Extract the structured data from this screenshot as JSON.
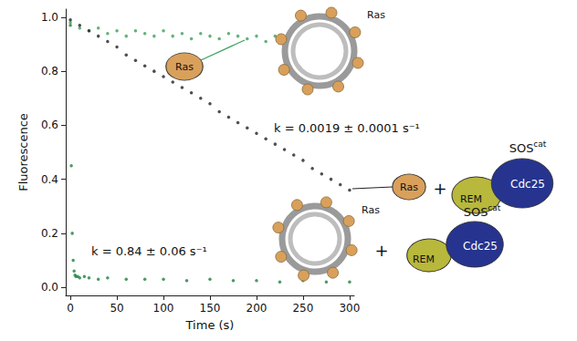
{
  "chart_data": {
    "type": "scatter",
    "xlabel": "Time (s)",
    "ylabel": "Fluorescence",
    "xlim": [
      -5,
      305
    ],
    "xticks": [
      0,
      50,
      100,
      150,
      200,
      250,
      300
    ],
    "ylim": [
      -0.03,
      1.03
    ],
    "yticks": [
      {
        "value": 0,
        "label": "0.0"
      },
      0.2,
      0.4,
      0.6,
      0.8,
      {
        "value": 1,
        "label": "1.0"
      }
    ],
    "grid": false,
    "series": [
      {
        "color": "#3aa05a",
        "marker": "circle",
        "x": [
          0,
          10,
          20,
          30,
          40,
          50,
          60,
          70,
          80,
          90,
          100,
          110,
          120,
          130,
          140,
          150,
          160,
          170,
          180,
          190,
          200,
          210,
          220,
          230,
          240,
          250,
          260,
          270,
          280,
          290,
          300
        ],
        "values": [
          0.98,
          0.96,
          0.95,
          0.96,
          0.94,
          0.95,
          0.93,
          0.95,
          0.94,
          0.93,
          0.95,
          0.93,
          0.94,
          0.92,
          0.94,
          0.93,
          0.92,
          0.94,
          0.93,
          0.92,
          0.93,
          0.91,
          0.93,
          0.92,
          0.91,
          0.93,
          0.92,
          0.91,
          0.92,
          0.93,
          0.92
        ]
      },
      {
        "color": "#222222",
        "marker": "circle",
        "x": [
          0,
          10,
          20,
          30,
          40,
          50,
          60,
          70,
          80,
          90,
          100,
          110,
          120,
          130,
          140,
          150,
          160,
          170,
          180,
          190,
          200,
          210,
          220,
          230,
          240,
          250,
          260,
          270,
          280,
          290,
          300
        ],
        "values": [
          0.99,
          0.97,
          0.95,
          0.93,
          0.91,
          0.89,
          0.86,
          0.84,
          0.82,
          0.8,
          0.78,
          0.76,
          0.74,
          0.72,
          0.7,
          0.68,
          0.65,
          0.63,
          0.61,
          0.59,
          0.57,
          0.55,
          0.53,
          0.51,
          0.49,
          0.47,
          0.44,
          0.42,
          0.4,
          0.38,
          0.36
        ]
      },
      {
        "color": "#1e8040",
        "marker": "circle",
        "x": [
          0,
          1,
          2,
          3,
          4,
          5,
          6,
          8,
          10,
          15,
          20,
          30,
          40,
          60,
          80,
          100,
          125,
          150,
          175,
          200,
          225,
          250,
          275,
          300
        ],
        "values": [
          0.97,
          0.45,
          0.2,
          0.1,
          0.06,
          0.045,
          0.04,
          0.04,
          0.035,
          0.04,
          0.035,
          0.03,
          0.035,
          0.03,
          0.03,
          0.03,
          0.025,
          0.03,
          0.025,
          0.025,
          0.02,
          0.025,
          0.02,
          0.02
        ]
      }
    ],
    "annotations": [
      {
        "text": "k = 0.0019 ± 0.0001 s⁻¹"
      },
      {
        "text": "k = 0.84 ± 0.06 s⁻¹"
      },
      {
        "text": "Ras"
      },
      {
        "text": "Ras"
      },
      {
        "text": "Ras"
      },
      {
        "text": "+"
      },
      {
        "text": "SOS",
        "superscript": "cat"
      },
      {
        "text": "REM"
      },
      {
        "text": "Cdc25"
      },
      {
        "text": "Ras"
      },
      {
        "text": "+"
      },
      {
        "text": "SOS",
        "superscript": "cat"
      },
      {
        "text": "REM"
      },
      {
        "text": "Cdc25"
      }
    ]
  }
}
